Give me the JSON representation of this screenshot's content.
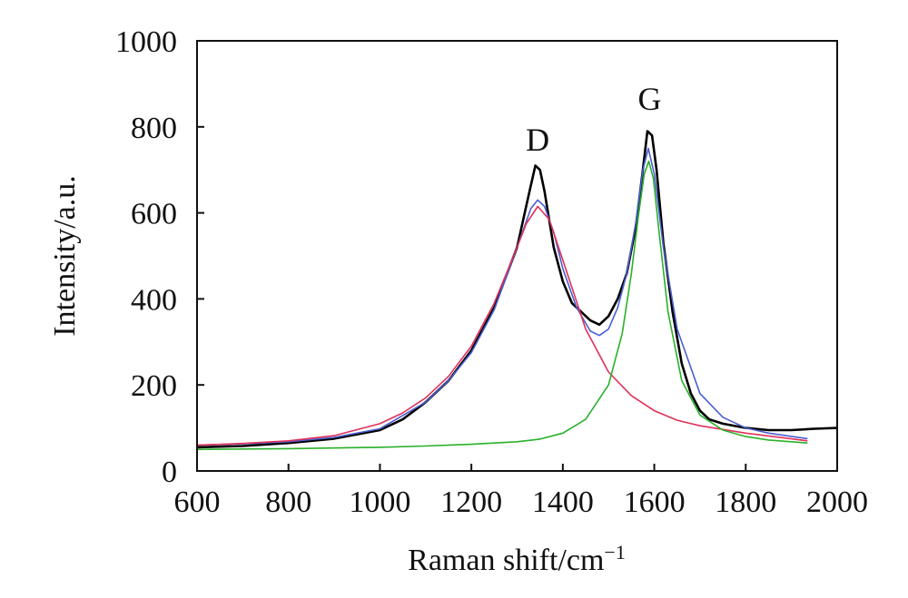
{
  "chart_data": {
    "type": "line",
    "title": "",
    "xlabel": "Raman shift/cm",
    "xlabel_superscript": "−1",
    "ylabel": "Intensity/a.u.",
    "xlim": [
      600,
      2000
    ],
    "ylim": [
      0,
      1000
    ],
    "x_ticks": [
      "600",
      "800",
      "1000",
      "1200",
      "1400",
      "1600",
      "1800",
      "2000"
    ],
    "y_ticks": [
      "0",
      "200",
      "400",
      "600",
      "800",
      "1000"
    ],
    "grid": false,
    "legend": "none",
    "annotations": [
      {
        "text": "D",
        "x": 1345,
        "y": 745
      },
      {
        "text": "G",
        "x": 1590,
        "y": 840
      }
    ],
    "series": [
      {
        "color": "#000000",
        "x": [
          600,
          700,
          800,
          900,
          1000,
          1050,
          1100,
          1150,
          1200,
          1250,
          1300,
          1325,
          1340,
          1350,
          1360,
          1380,
          1400,
          1420,
          1440,
          1460,
          1480,
          1500,
          1520,
          1540,
          1560,
          1575,
          1585,
          1595,
          1605,
          1620,
          1640,
          1660,
          1680,
          1700,
          1720,
          1750,
          1800,
          1850,
          1900,
          1950,
          2000
        ],
        "y": [
          55,
          58,
          65,
          75,
          95,
          120,
          160,
          210,
          280,
          380,
          520,
          640,
          710,
          700,
          650,
          520,
          440,
          390,
          370,
          350,
          340,
          360,
          400,
          460,
          570,
          700,
          790,
          780,
          700,
          530,
          370,
          250,
          180,
          140,
          120,
          110,
          100,
          95,
          95,
          98,
          100
        ]
      },
      {
        "color": "#4a5fd0",
        "x": [
          600,
          700,
          800,
          900,
          1000,
          1100,
          1150,
          1200,
          1250,
          1300,
          1330,
          1345,
          1360,
          1380,
          1400,
          1430,
          1460,
          1480,
          1500,
          1520,
          1540,
          1560,
          1575,
          1587,
          1600,
          1620,
          1650,
          1700,
          1750,
          1800,
          1850,
          1935
        ],
        "y": [
          60,
          63,
          68,
          78,
          98,
          160,
          210,
          275,
          375,
          520,
          610,
          630,
          615,
          555,
          470,
          380,
          325,
          315,
          330,
          380,
          460,
          580,
          700,
          750,
          690,
          520,
          330,
          180,
          125,
          100,
          88,
          75
        ]
      },
      {
        "color": "#e0305a",
        "x": [
          600,
          700,
          800,
          900,
          1000,
          1050,
          1100,
          1150,
          1200,
          1250,
          1300,
          1320,
          1345,
          1370,
          1400,
          1450,
          1500,
          1550,
          1600,
          1650,
          1700,
          1800,
          1935
        ],
        "y": [
          60,
          64,
          70,
          82,
          110,
          135,
          170,
          220,
          290,
          390,
          520,
          575,
          615,
          585,
          490,
          330,
          230,
          175,
          140,
          118,
          105,
          88,
          70
        ]
      },
      {
        "color": "#2ab02a",
        "x": [
          600,
          800,
          1000,
          1100,
          1200,
          1300,
          1350,
          1400,
          1450,
          1500,
          1530,
          1550,
          1565,
          1578,
          1588,
          1598,
          1610,
          1630,
          1660,
          1700,
          1750,
          1800,
          1850,
          1935
        ],
        "y": [
          50,
          52,
          55,
          58,
          62,
          68,
          74,
          88,
          120,
          200,
          320,
          460,
          590,
          690,
          720,
          680,
          560,
          370,
          210,
          130,
          95,
          80,
          72,
          65
        ]
      }
    ]
  }
}
